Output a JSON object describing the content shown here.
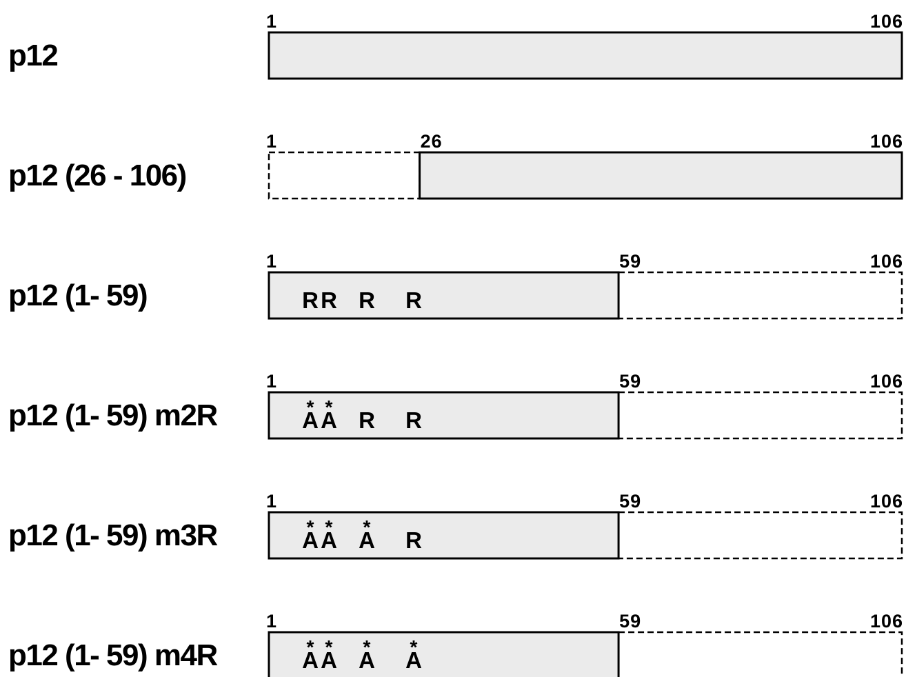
{
  "protein_length": 106,
  "constructs": [
    {
      "name": "p12",
      "present": [
        1,
        106
      ],
      "labels": [
        "1",
        "106"
      ],
      "residues": []
    },
    {
      "name": "p12 (26 - 106)",
      "present": [
        26,
        106
      ],
      "labels": [
        "1",
        "26",
        "106"
      ],
      "residues": []
    },
    {
      "name": "p12 (1- 59)",
      "present": [
        1,
        59
      ],
      "labels": [
        "1",
        "59",
        "106"
      ],
      "residues": [
        {
          "letter": "R",
          "mutated": false
        },
        {
          "letter": "R",
          "mutated": false
        },
        {
          "letter": "R",
          "mutated": false
        },
        {
          "letter": "R",
          "mutated": false
        }
      ]
    },
    {
      "name": "p12 (1- 59) m2R",
      "present": [
        1,
        59
      ],
      "labels": [
        "1",
        "59",
        "106"
      ],
      "residues": [
        {
          "letter": "A",
          "mutated": true
        },
        {
          "letter": "A",
          "mutated": true
        },
        {
          "letter": "R",
          "mutated": false
        },
        {
          "letter": "R",
          "mutated": false
        }
      ]
    },
    {
      "name": "p12 (1- 59) m3R",
      "present": [
        1,
        59
      ],
      "labels": [
        "1",
        "59",
        "106"
      ],
      "residues": [
        {
          "letter": "A",
          "mutated": true
        },
        {
          "letter": "A",
          "mutated": true
        },
        {
          "letter": "A",
          "mutated": true
        },
        {
          "letter": "R",
          "mutated": false
        }
      ]
    },
    {
      "name": "p12 (1- 59) m4R",
      "present": [
        1,
        59
      ],
      "labels": [
        "1",
        "59",
        "106"
      ],
      "residues": [
        {
          "letter": "A",
          "mutated": true
        },
        {
          "letter": "A",
          "mutated": true
        },
        {
          "letter": "A",
          "mutated": true
        },
        {
          "letter": "A",
          "mutated": true
        }
      ]
    }
  ],
  "mutation_marker": "*"
}
